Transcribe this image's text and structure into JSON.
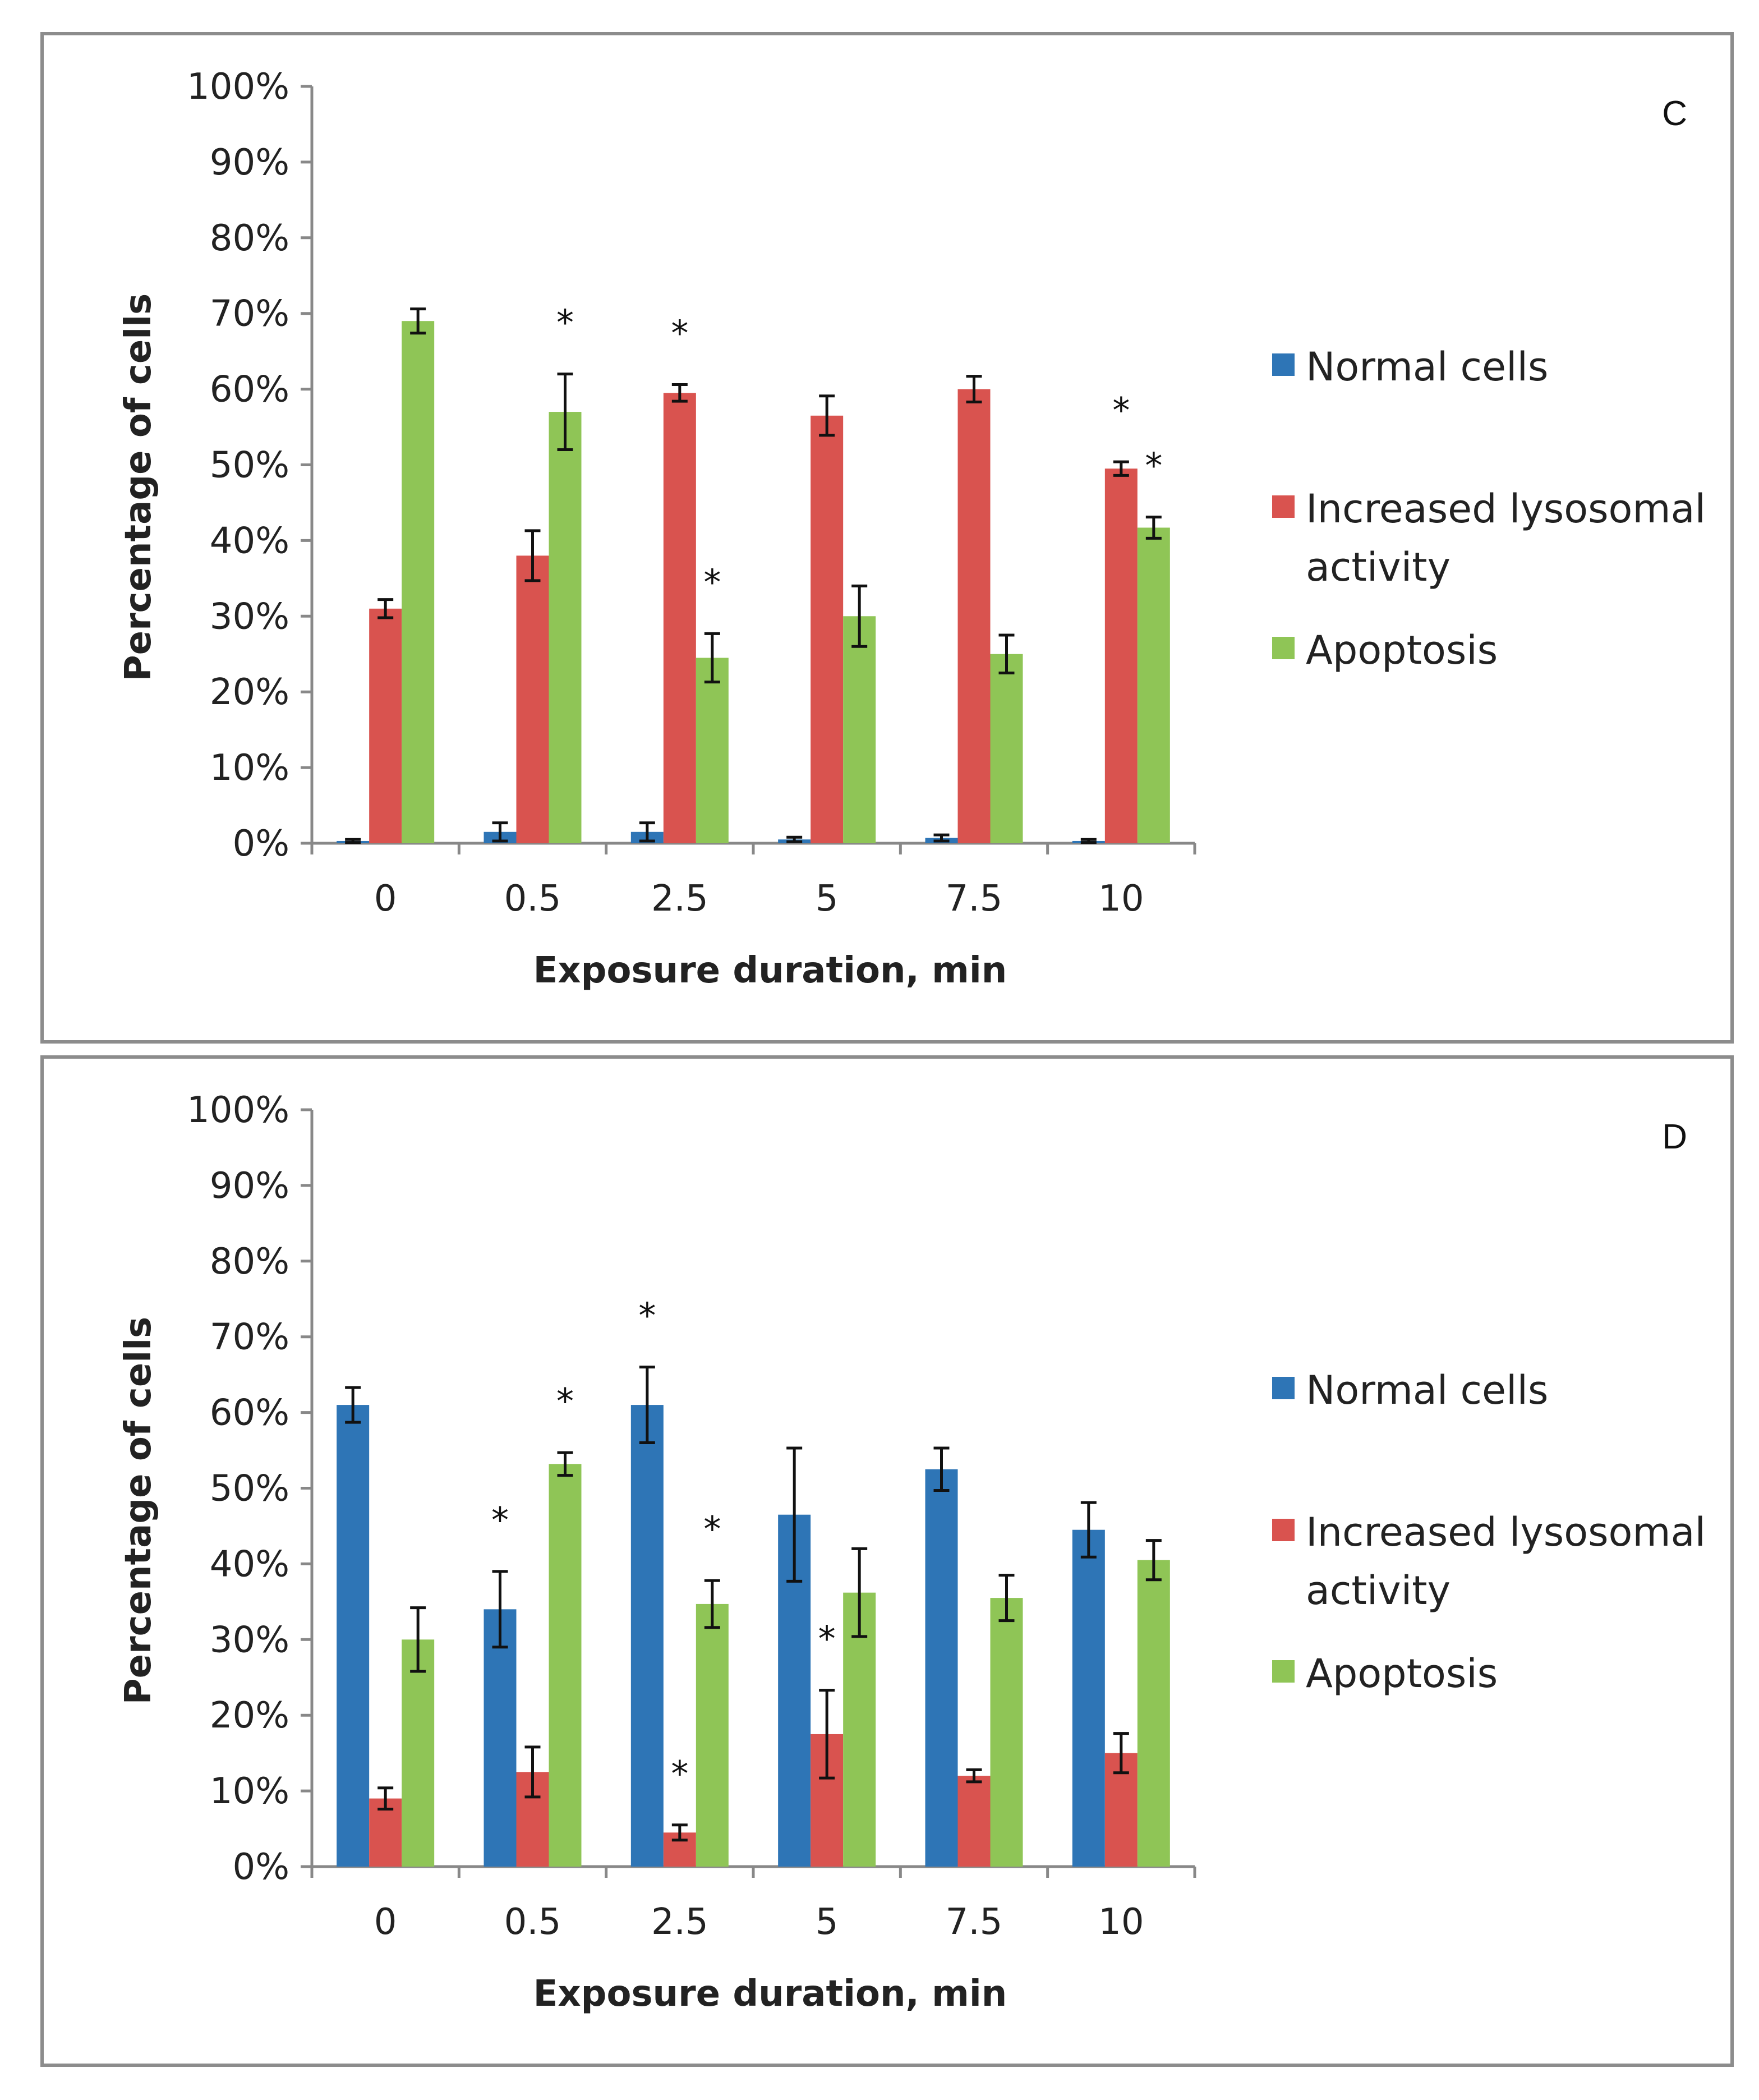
{
  "chart_data": [
    {
      "type": "bar",
      "panel_label": "C",
      "ylabel": "Percentage of cells",
      "xlabel": "Exposure duration, min",
      "categories": [
        "0",
        "0.5",
        "2.5",
        "5",
        "7.5",
        "10"
      ],
      "ylim": [
        0,
        100
      ],
      "yticks": [
        "0%",
        "10%",
        "20%",
        "30%",
        "40%",
        "50%",
        "60%",
        "70%",
        "80%",
        "90%",
        "100%"
      ],
      "series": [
        {
          "name": "Normal cells",
          "color": "#2e75b6",
          "values": [
            0.3,
            1.5,
            1.5,
            0.5,
            0.7,
            0.3
          ],
          "errors": [
            0.2,
            1.2,
            1.2,
            0.3,
            0.4,
            0.2
          ]
        },
        {
          "name": "Increased lysosomal activity",
          "color": "#d9534f",
          "values": [
            31,
            38,
            59.5,
            56.5,
            60,
            49.5
          ],
          "errors": [
            1.2,
            3.3,
            1.1,
            2.6,
            1.7,
            0.9
          ]
        },
        {
          "name": "Apoptosis",
          "color": "#8fc556",
          "values": [
            69,
            57,
            24.5,
            30,
            25,
            41.7
          ],
          "errors": [
            1.6,
            5,
            3.2,
            4,
            2.5,
            1.4
          ]
        }
      ],
      "significance": [
        {
          "category": "0.5",
          "series": "Apoptosis",
          "label": "*"
        },
        {
          "category": "2.5",
          "series": "Increased lysosomal activity",
          "label": "*"
        },
        {
          "category": "2.5",
          "series": "Apoptosis",
          "label": "*"
        },
        {
          "category": "10",
          "series": "Increased lysosomal activity",
          "label": "*"
        },
        {
          "category": "10",
          "series": "Apoptosis",
          "label": "*"
        }
      ],
      "legend": [
        "Normal cells",
        "Increased lysosomal",
        "activity",
        "Apoptosis"
      ]
    },
    {
      "type": "bar",
      "panel_label": "D",
      "ylabel": "Percentage of cells",
      "xlabel": "Exposure duration, min",
      "categories": [
        "0",
        "0.5",
        "2.5",
        "5",
        "7.5",
        "10"
      ],
      "ylim": [
        0,
        100
      ],
      "yticks": [
        "0%",
        "10%",
        "20%",
        "30%",
        "40%",
        "50%",
        "60%",
        "70%",
        "80%",
        "90%",
        "100%"
      ],
      "series": [
        {
          "name": "Normal cells",
          "color": "#2e75b6",
          "values": [
            61,
            34,
            61,
            46.5,
            52.5,
            44.5
          ],
          "errors": [
            2.3,
            5,
            5,
            8.8,
            2.8,
            3.6
          ]
        },
        {
          "name": "Increased lysosomal activity",
          "color": "#d9534f",
          "values": [
            9,
            12.5,
            4.5,
            17.5,
            12,
            15
          ],
          "errors": [
            1.4,
            3.3,
            1,
            5.8,
            0.8,
            2.6
          ]
        },
        {
          "name": "Apoptosis",
          "color": "#8fc556",
          "values": [
            30,
            53.2,
            34.7,
            36.2,
            35.5,
            40.5
          ],
          "errors": [
            4.2,
            1.5,
            3.1,
            5.8,
            3,
            2.6
          ]
        }
      ],
      "significance": [
        {
          "category": "0.5",
          "series": "Normal cells",
          "label": "*"
        },
        {
          "category": "0.5",
          "series": "Apoptosis",
          "label": "*"
        },
        {
          "category": "2.5",
          "series": "Normal cells",
          "label": "*"
        },
        {
          "category": "2.5",
          "series": "Increased lysosomal activity",
          "label": "*"
        },
        {
          "category": "2.5",
          "series": "Apoptosis",
          "label": "*"
        },
        {
          "category": "5",
          "series": "Increased lysosomal activity",
          "label": "*"
        }
      ],
      "legend": [
        "Normal cells",
        "Increased lysosomal",
        "activity",
        "Apoptosis"
      ]
    }
  ]
}
